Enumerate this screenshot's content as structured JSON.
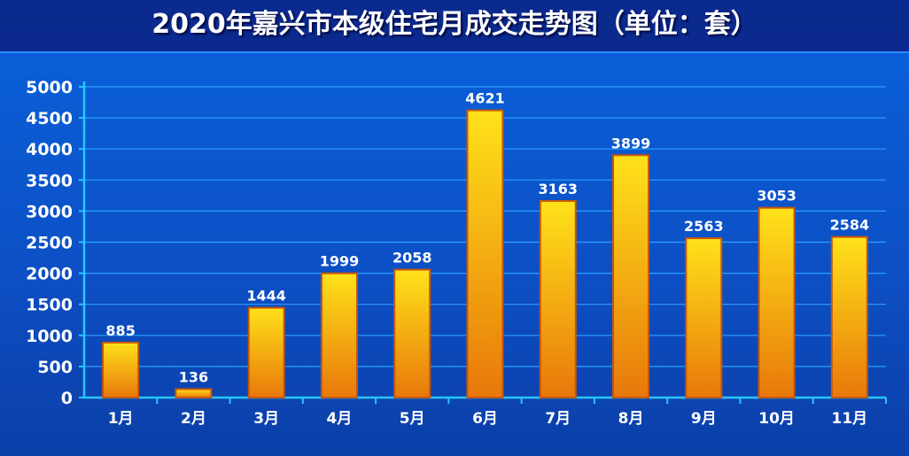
{
  "title": "2020年嘉兴市本级住宅月成交走势图（单位：套）",
  "chart_data": {
    "type": "bar",
    "title": "2020年嘉兴市本级住宅月成交走势图（单位：套）",
    "xlabel": "",
    "ylabel": "",
    "categories": [
      "1月",
      "2月",
      "3月",
      "4月",
      "5月",
      "6月",
      "7月",
      "8月",
      "9月",
      "10月",
      "11月"
    ],
    "values": [
      885,
      136,
      1444,
      1999,
      2058,
      4621,
      3163,
      3899,
      2563,
      3053,
      2584
    ],
    "ylim": [
      0,
      5000
    ],
    "yticks": [
      0,
      500,
      1000,
      1500,
      2000,
      2500,
      3000,
      3500,
      4000,
      4500,
      5000
    ],
    "grid": true,
    "data_labels": true,
    "colors": {
      "bar_top": "#ffe21a",
      "bar_bottom": "#e8780a",
      "bar_edge": "#c8560a",
      "grid": "#2aa0ff",
      "axis": "#29c6ff"
    }
  }
}
